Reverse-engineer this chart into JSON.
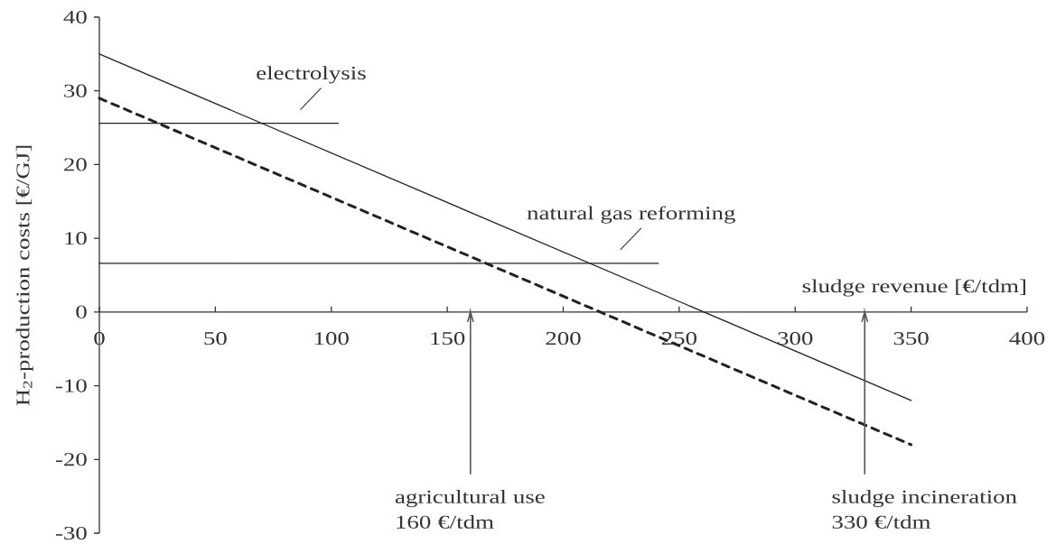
{
  "chart_data": {
    "type": "line",
    "xlabel": "sludge revenue [€/tdm]",
    "ylabel": "H$_{2}$-production costs [€/GJ]",
    "xlim": [
      0,
      400
    ],
    "ylim": [
      -30,
      40
    ],
    "xticks": [
      0,
      50,
      100,
      150,
      200,
      250,
      300,
      350,
      400
    ],
    "yticks": [
      -30,
      -20,
      -10,
      0,
      10,
      20,
      30,
      40
    ],
    "series": [
      {
        "color": "#222222",
        "line_style": "solid",
        "x": [
          0,
          350
        ],
        "values": [
          35,
          -12
        ]
      },
      {
        "color": "#222222",
        "line_style": "dashed",
        "x": [
          0,
          350
        ],
        "values": [
          29,
          -18
        ]
      },
      {
        "name": "electrolysis",
        "color": "#222222",
        "line_style": "solid",
        "x": [
          0,
          103
        ],
        "values": [
          25.6,
          25.6
        ]
      },
      {
        "name": "natural gas reforming",
        "color": "#222222",
        "line_style": "solid",
        "x": [
          0,
          241
        ],
        "values": [
          6.6,
          6.6
        ]
      }
    ],
    "ref_lines": [
      {
        "axis": "x",
        "value": 160,
        "label": "agricultural use 160 €/tdm",
        "color": "#555555"
      },
      {
        "axis": "x",
        "value": 330,
        "label": "sludge incineration 330 €/tdm",
        "color": "#555555"
      }
    ]
  }
}
